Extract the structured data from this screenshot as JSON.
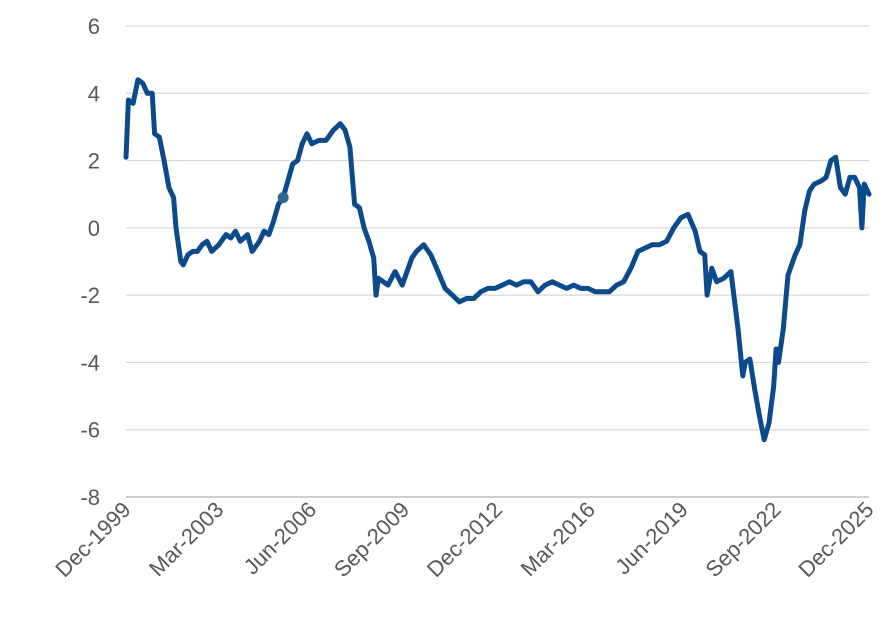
{
  "chart_data": {
    "type": "line",
    "title": "",
    "xlabel": "",
    "ylabel": "",
    "x_ticks": [
      "Dec-1999",
      "Mar-2003",
      "Jun-2006",
      "Sep-2009",
      "Dec-2012",
      "Mar-2016",
      "Jun-2019",
      "Sep-2022",
      "Dec-2025"
    ],
    "y_ticks": [
      "6",
      "4",
      "2",
      "0",
      "-2",
      "-4",
      "-6",
      "-8"
    ],
    "ylim": [
      -8,
      6
    ],
    "xlim": [
      "1999-12",
      "2025-12"
    ],
    "grid": "horizontal",
    "legend": "none",
    "series": [
      {
        "color": "#0b4a8b",
        "points": [
          [
            "1999-12",
            2.1
          ],
          [
            "2000-01",
            3.8
          ],
          [
            "2000-03",
            3.7
          ],
          [
            "2000-05",
            4.4
          ],
          [
            "2000-07",
            4.3
          ],
          [
            "2000-09",
            4.0
          ],
          [
            "2000-11",
            4.0
          ],
          [
            "2000-12",
            2.8
          ],
          [
            "2001-02",
            2.7
          ],
          [
            "2001-04",
            2.0
          ],
          [
            "2001-06",
            1.2
          ],
          [
            "2001-08",
            0.9
          ],
          [
            "2001-09",
            0.0
          ],
          [
            "2001-11",
            -1.0
          ],
          [
            "2001-12",
            -1.1
          ],
          [
            "2002-02",
            -0.8
          ],
          [
            "2002-04",
            -0.7
          ],
          [
            "2002-06",
            -0.7
          ],
          [
            "2002-08",
            -0.5
          ],
          [
            "2002-10",
            -0.4
          ],
          [
            "2002-12",
            -0.7
          ],
          [
            "2003-03",
            -0.5
          ],
          [
            "2003-06",
            -0.2
          ],
          [
            "2003-08",
            -0.3
          ],
          [
            "2003-10",
            -0.1
          ],
          [
            "2003-12",
            -0.4
          ],
          [
            "2004-03",
            -0.2
          ],
          [
            "2004-05",
            -0.7
          ],
          [
            "2004-08",
            -0.4
          ],
          [
            "2004-10",
            -0.1
          ],
          [
            "2004-12",
            -0.2
          ],
          [
            "2005-02",
            0.2
          ],
          [
            "2005-04",
            0.7
          ],
          [
            "2005-06",
            0.9
          ],
          [
            "2005-08",
            1.4
          ],
          [
            "2005-10",
            1.9
          ],
          [
            "2005-12",
            2.0
          ],
          [
            "2006-02",
            2.5
          ],
          [
            "2006-04",
            2.8
          ],
          [
            "2006-06",
            2.5
          ],
          [
            "2006-09",
            2.6
          ],
          [
            "2006-12",
            2.6
          ],
          [
            "2007-03",
            2.9
          ],
          [
            "2007-06",
            3.1
          ],
          [
            "2007-08",
            2.9
          ],
          [
            "2007-10",
            2.4
          ],
          [
            "2007-12",
            0.7
          ],
          [
            "2008-02",
            0.6
          ],
          [
            "2008-04",
            0.0
          ],
          [
            "2008-06",
            -0.4
          ],
          [
            "2008-08",
            -0.9
          ],
          [
            "2008-09",
            -2.0
          ],
          [
            "2008-10",
            -1.5
          ],
          [
            "2008-12",
            -1.6
          ],
          [
            "2009-02",
            -1.7
          ],
          [
            "2009-05",
            -1.3
          ],
          [
            "2009-08",
            -1.7
          ],
          [
            "2009-10",
            -1.3
          ],
          [
            "2009-12",
            -0.9
          ],
          [
            "2010-02",
            -0.7
          ],
          [
            "2010-05",
            -0.5
          ],
          [
            "2010-08",
            -0.8
          ],
          [
            "2010-11",
            -1.3
          ],
          [
            "2011-02",
            -1.8
          ],
          [
            "2011-05",
            -2.0
          ],
          [
            "2011-08",
            -2.2
          ],
          [
            "2011-11",
            -2.1
          ],
          [
            "2012-02",
            -2.1
          ],
          [
            "2012-05",
            -1.9
          ],
          [
            "2012-08",
            -1.8
          ],
          [
            "2012-11",
            -1.8
          ],
          [
            "2013-02",
            -1.7
          ],
          [
            "2013-05",
            -1.6
          ],
          [
            "2013-08",
            -1.7
          ],
          [
            "2013-11",
            -1.6
          ],
          [
            "2014-02",
            -1.6
          ],
          [
            "2014-05",
            -1.9
          ],
          [
            "2014-08",
            -1.7
          ],
          [
            "2014-11",
            -1.6
          ],
          [
            "2015-02",
            -1.7
          ],
          [
            "2015-05",
            -1.8
          ],
          [
            "2015-08",
            -1.7
          ],
          [
            "2015-11",
            -1.8
          ],
          [
            "2016-02",
            -1.8
          ],
          [
            "2016-05",
            -1.9
          ],
          [
            "2016-08",
            -1.9
          ],
          [
            "2016-11",
            -1.9
          ],
          [
            "2017-02",
            -1.7
          ],
          [
            "2017-05",
            -1.6
          ],
          [
            "2017-08",
            -1.2
          ],
          [
            "2017-11",
            -0.7
          ],
          [
            "2018-02",
            -0.6
          ],
          [
            "2018-05",
            -0.5
          ],
          [
            "2018-08",
            -0.5
          ],
          [
            "2018-11",
            -0.4
          ],
          [
            "2019-02",
            0.0
          ],
          [
            "2019-05",
            0.3
          ],
          [
            "2019-08",
            0.4
          ],
          [
            "2019-11",
            -0.1
          ],
          [
            "2020-01",
            -0.7
          ],
          [
            "2020-03",
            -0.8
          ],
          [
            "2020-04",
            -2.0
          ],
          [
            "2020-06",
            -1.2
          ],
          [
            "2020-08",
            -1.6
          ],
          [
            "2020-11",
            -1.5
          ],
          [
            "2021-02",
            -1.3
          ],
          [
            "2021-05",
            -3.0
          ],
          [
            "2021-07",
            -4.4
          ],
          [
            "2021-08",
            -4.0
          ],
          [
            "2021-10",
            -3.9
          ],
          [
            "2021-12",
            -4.8
          ],
          [
            "2022-02",
            -5.6
          ],
          [
            "2022-04",
            -6.3
          ],
          [
            "2022-06",
            -5.8
          ],
          [
            "2022-08",
            -4.7
          ],
          [
            "2022-09",
            -3.6
          ],
          [
            "2022-10",
            -4.0
          ],
          [
            "2022-12",
            -3.0
          ],
          [
            "2023-02",
            -1.4
          ],
          [
            "2023-05",
            -0.8
          ],
          [
            "2023-07",
            -0.5
          ],
          [
            "2023-09",
            0.5
          ],
          [
            "2023-11",
            1.1
          ],
          [
            "2024-01",
            1.3
          ],
          [
            "2024-04",
            1.4
          ],
          [
            "2024-06",
            1.5
          ],
          [
            "2024-08",
            2.0
          ],
          [
            "2024-10",
            2.1
          ],
          [
            "2024-12",
            1.2
          ],
          [
            "2025-02",
            1.0
          ],
          [
            "2025-04",
            1.5
          ],
          [
            "2025-06",
            1.5
          ],
          [
            "2025-08",
            1.2
          ],
          [
            "2025-09",
            0.0
          ],
          [
            "2025-10",
            1.3
          ],
          [
            "2025-12",
            1.0
          ]
        ]
      }
    ],
    "marker": {
      "x": "2005-06",
      "y": 0.9,
      "color": "#2a6a8c"
    }
  }
}
